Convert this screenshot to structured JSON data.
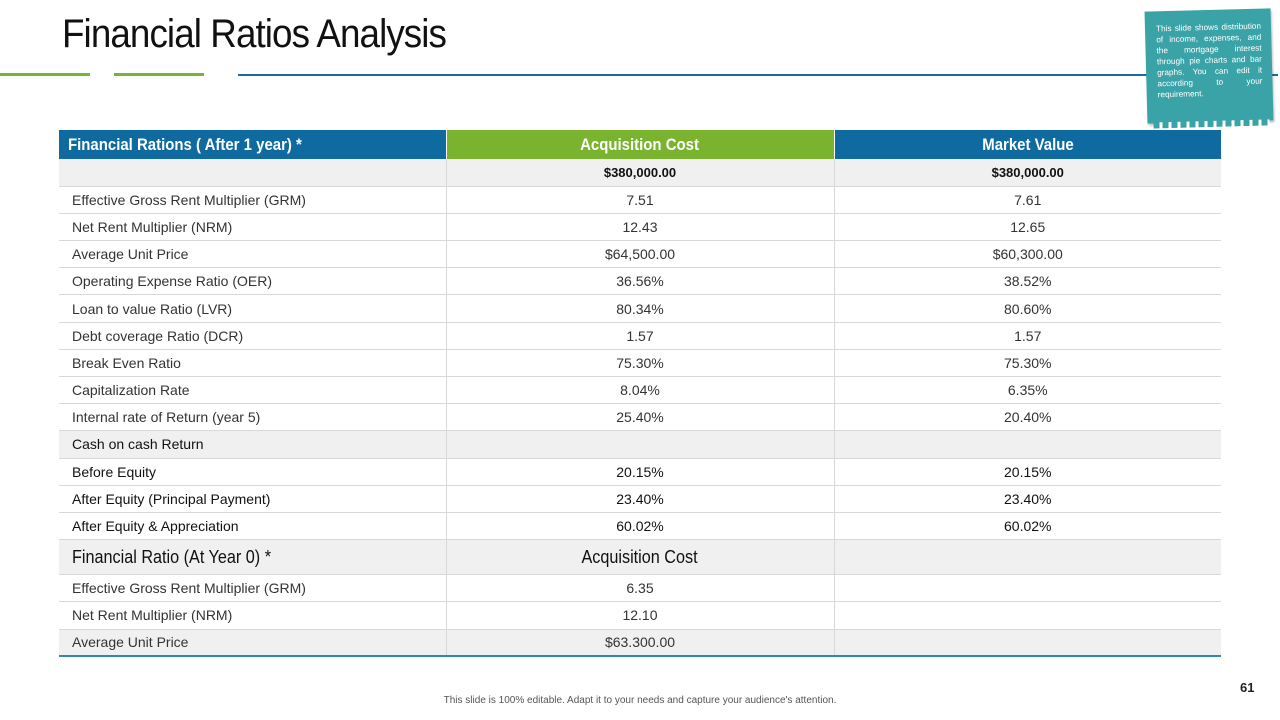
{
  "slide": {
    "title": "Financial Ratios Analysis",
    "page_number": "61",
    "footer": "This slide is 100% editable. Adapt it to your needs and capture your audience's attention."
  },
  "note": {
    "text": "This slide shows distribution of income, expenses, and the mortgage interest through pie charts and bar graphs. You can edit it according to your requirement.",
    "color": "#3aa3a8"
  },
  "colors": {
    "blue": "#0f6aa0",
    "green": "#7ab32e"
  },
  "table": {
    "headers": [
      "Financial Rations ( After 1 year) *",
      "Acquisition Cost",
      "Market Value"
    ],
    "rows": [
      [
        "",
        "$380,000.00",
        "$380,000.00"
      ],
      [
        "Effective Gross Rent Multiplier  (GRM)",
        "7.51",
        "7.61"
      ],
      [
        "Net Rent Multiplier  (NRM)",
        "12.43",
        "12.65"
      ],
      [
        "Average Unit Price",
        "$64,500.00",
        "$60,300.00"
      ],
      [
        "Operating Expense Ratio (OER)",
        "36.56%",
        "38.52%"
      ],
      [
        "Loan to value Ratio (LVR)",
        "80.34%",
        "80.60%"
      ],
      [
        "Debt coverage Ratio (DCR)",
        "1.57",
        "1.57"
      ],
      [
        "Break Even Ratio",
        "75.30%",
        "75.30%"
      ],
      [
        "Capitalization Rate",
        "8.04%",
        "6.35%"
      ],
      [
        "Internal rate of Return (year 5)",
        "25.40%",
        "20.40%"
      ],
      [
        "Cash on cash Return",
        "",
        ""
      ],
      [
        "Before Equity",
        "20.15%",
        "20.15%"
      ],
      [
        "After Equity (Principal Payment)",
        "23.40%",
        "23.40%"
      ],
      [
        "After Equity & Appreciation",
        "60.02%",
        "60.02%"
      ]
    ],
    "subheader": [
      "Financial Ratio (At Year 0) *",
      "Acquisition Cost",
      ""
    ],
    "rows2": [
      [
        "Effective Gross Rent Multiplier  (GRM)",
        "6.35",
        ""
      ],
      [
        "Net Rent Multiplier  (NRM)",
        "12.10",
        ""
      ],
      [
        "Average Unit Price",
        "$63.300.00",
        ""
      ]
    ]
  }
}
